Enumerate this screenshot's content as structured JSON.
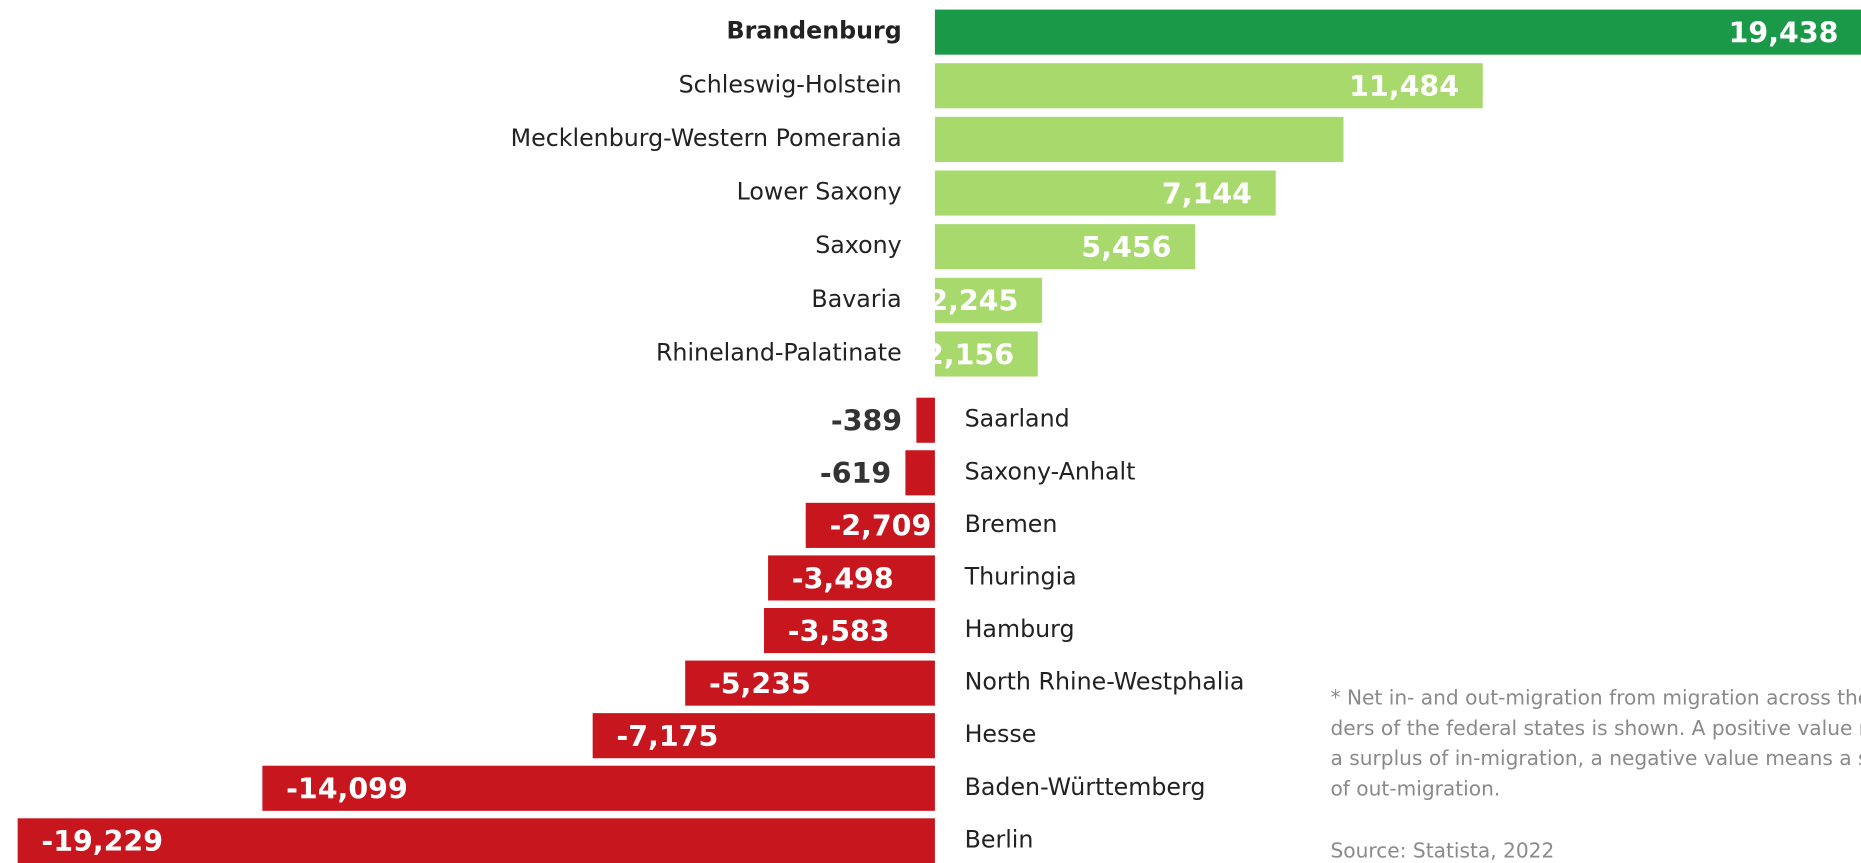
{
  "chart_data": {
    "type": "bar",
    "orientation": "horizontal",
    "categories": [
      "Brandenburg",
      "Schleswig-Holstein",
      "Mecklenburg-Western Pomerania",
      "Lower Saxony",
      "Saxony",
      "Bavaria",
      "Rhineland-Palatinate",
      "Saarland",
      "Saxony-Anhalt",
      "Bremen",
      "Thuringia",
      "Hamburg",
      "North Rhine-Westphalia",
      "Hesse",
      "Baden-Württemberg",
      "Berlin"
    ],
    "values": [
      19438,
      11484,
      8565,
      7144,
      5456,
      2245,
      2156,
      -389,
      -619,
      -2709,
      -3498,
      -3583,
      -5235,
      -7175,
      -14099,
      -19229
    ],
    "value_labels": [
      "19,438",
      "11,484",
      null,
      "7,144",
      "5,456",
      "2,245",
      "2,156",
      "-389",
      "-619",
      "-2,709",
      "-3,498",
      "-3,583",
      "-5,235",
      "-7,175",
      "-14,099",
      "-19,229"
    ],
    "xlim": [
      -19400,
      19438
    ],
    "highlight": "Brandenburg",
    "highlight_color": "#1a9a48",
    "positive_color": "#a8d96c",
    "negative_color": "#c8161e",
    "note_lines": [
      "* Net in- and out-migration from migration across the bor-",
      "ders of the federal states is shown. A positive value means",
      "a surplus of in-migration, a negative value means a surplus",
      "of out-migration."
    ],
    "source": "Source: Statista, 2022"
  }
}
